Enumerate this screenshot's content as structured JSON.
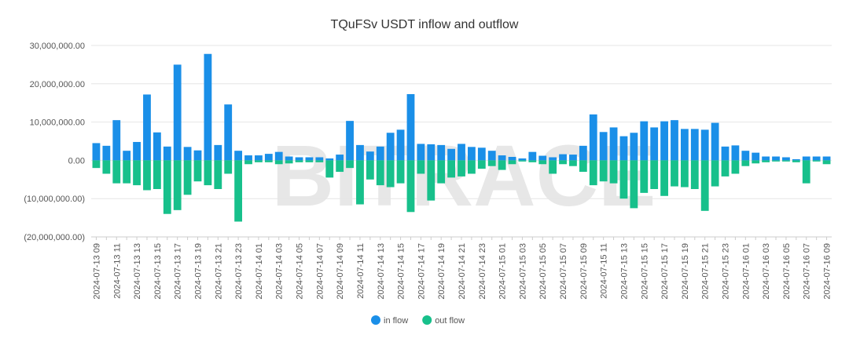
{
  "chart_data": {
    "type": "bar",
    "title": "TQuFSv USDT inflow and outflow",
    "watermark": "BITRACE",
    "categories": [
      "2024-07-13 09",
      null,
      "2024-07-13 11",
      null,
      "2024-07-13 13",
      null,
      "2024-07-13 15",
      null,
      "2024-07-13 17",
      null,
      "2024-07-13 19",
      null,
      "2024-07-13 21",
      null,
      "2024-07-13 23",
      null,
      "2024-07-14 01",
      null,
      "2024-07-14 03",
      null,
      "2024-07-14 05",
      null,
      "2024-07-14 07",
      null,
      "2024-07-14 09",
      null,
      "2024-07-14 11",
      null,
      "2024-07-14 13",
      null,
      "2024-07-14 15",
      null,
      "2024-07-14 17",
      null,
      "2024-07-14 19",
      null,
      "2024-07-14 21",
      null,
      "2024-07-14 23",
      null,
      "2024-07-15 01",
      null,
      "2024-07-15 03",
      null,
      "2024-07-15 05",
      null,
      "2024-07-15 07",
      null,
      "2024-07-15 09",
      null,
      "2024-07-15 11",
      null,
      "2024-07-15 13",
      null,
      "2024-07-15 15",
      null,
      "2024-07-15 17",
      null,
      "2024-07-15 19",
      null,
      "2024-07-15 21",
      null,
      "2024-07-15 23",
      null,
      "2024-07-16 01",
      null,
      "2024-07-16 03",
      null,
      "2024-07-16 05",
      null,
      "2024-07-16 07",
      null,
      "2024-07-16 09"
    ],
    "series": [
      {
        "name": "in flow",
        "color": "#1a8fe8",
        "values": [
          4500000,
          3800000,
          10500000,
          2500000,
          4800000,
          17200000,
          7300000,
          3600000,
          25000000,
          3500000,
          2600000,
          27800000,
          4000000,
          14600000,
          2500000,
          1300000,
          1300000,
          1700000,
          2200000,
          1000000,
          800000,
          800000,
          800000,
          500000,
          1500000,
          10300000,
          4000000,
          2300000,
          3600000,
          7200000,
          8000000,
          17300000,
          4300000,
          4200000,
          4000000,
          3000000,
          4300000,
          3500000,
          3300000,
          2500000,
          1300000,
          900000,
          500000,
          2200000,
          1200000,
          800000,
          1600000,
          1500000,
          3800000,
          12000000,
          7400000,
          8600000,
          6300000,
          7200000,
          10200000,
          8600000,
          10200000,
          10500000,
          8200000,
          8200000,
          8000000,
          9800000,
          3600000,
          3900000,
          2500000,
          2000000,
          1000000,
          1000000,
          800000,
          300000,
          1000000,
          1000000,
          1000000
        ]
      },
      {
        "name": "out flow",
        "color": "#17c08b",
        "values": [
          -2000000,
          -3500000,
          -6000000,
          -6000000,
          -6500000,
          -7800000,
          -7500000,
          -14000000,
          -13000000,
          -9000000,
          -5500000,
          -6500000,
          -7500000,
          -3500000,
          -16000000,
          -1000000,
          -500000,
          -500000,
          -1000000,
          -800000,
          -500000,
          -500000,
          -500000,
          -4500000,
          -3000000,
          -2000000,
          -11500000,
          -5000000,
          -6500000,
          -7000000,
          -6000000,
          -13500000,
          -3500000,
          -10500000,
          -6000000,
          -4500000,
          -4200000,
          -3500000,
          -2200000,
          -1500000,
          -2500000,
          -1000000,
          -300000,
          -500000,
          -1000000,
          -3500000,
          -1000000,
          -1500000,
          -3000000,
          -6500000,
          -5500000,
          -6000000,
          -10000000,
          -12500000,
          -8500000,
          -7500000,
          -9300000,
          -6800000,
          -7000000,
          -7500000,
          -13200000,
          -6800000,
          -4200000,
          -3500000,
          -1500000,
          -800000,
          -500000,
          -300000,
          -300000,
          -500000,
          -6000000,
          -300000,
          -1000000
        ]
      }
    ],
    "ylim": [
      -20000000,
      30000000
    ],
    "yticks": [
      {
        "value": -20000000,
        "label": "(20,000,000.00)"
      },
      {
        "value": -10000000,
        "label": "(10,000,000.00)"
      },
      {
        "value": 0,
        "label": "0.00"
      },
      {
        "value": 10000000,
        "label": "10,000,000.00"
      },
      {
        "value": 20000000,
        "label": "20,000,000.00"
      },
      {
        "value": 30000000,
        "label": "30,000,000.00"
      }
    ],
    "grid": true
  }
}
